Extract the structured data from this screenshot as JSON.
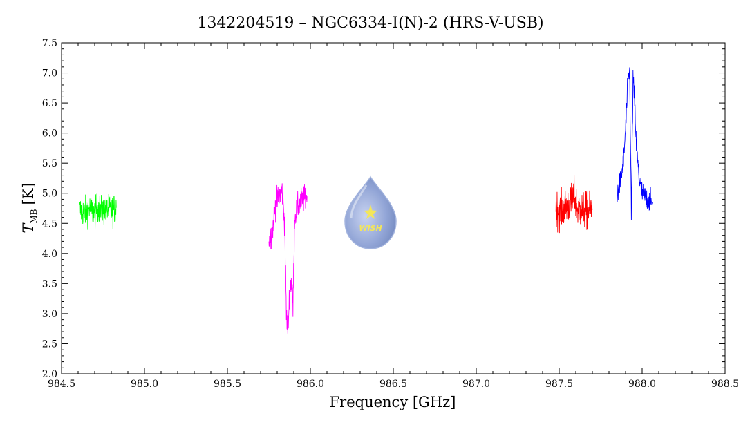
{
  "chart_data": {
    "type": "line",
    "title": "1342204519 – NGC6334-I(N)-2 (HRS-V-USB)",
    "xlabel": "Frequency [GHz]",
    "ylabel_main": "T",
    "ylabel_sub": "MB",
    "ylabel_unit": "[K]",
    "xlim": [
      984.5,
      988.5
    ],
    "ylim": [
      2.0,
      7.5
    ],
    "xticks": [
      "984.5",
      "985.0",
      "985.5",
      "986.0",
      "986.5",
      "987.0",
      "987.5",
      "988.0",
      "988.5"
    ],
    "yticks": [
      "2.0",
      "2.5",
      "3.0",
      "3.5",
      "4.0",
      "4.5",
      "5.0",
      "5.5",
      "6.0",
      "6.5",
      "7.0",
      "7.5"
    ],
    "grid": false,
    "series": [
      {
        "color": "#00ff00",
        "x": [
          984.61,
          984.64,
          984.67,
          984.7,
          984.72,
          984.74,
          984.77,
          984.8,
          984.83
        ],
        "y": [
          4.72,
          4.68,
          4.75,
          4.66,
          4.78,
          4.7,
          4.74,
          4.71,
          4.76
        ],
        "noise": 0.18
      },
      {
        "color": "#ff00ff",
        "x": [
          985.75,
          985.77,
          985.79,
          985.81,
          985.83,
          985.845,
          985.855,
          985.865,
          985.875,
          985.885,
          985.895,
          985.905,
          985.92,
          985.94,
          985.96,
          985.98
        ],
        "y": [
          4.25,
          4.35,
          4.8,
          4.95,
          5.05,
          4.5,
          3.0,
          2.7,
          3.4,
          3.55,
          3.1,
          4.6,
          4.75,
          4.85,
          4.9,
          4.95
        ],
        "noise": 0.16
      },
      {
        "color": "#ff0000",
        "x": [
          987.48,
          987.51,
          987.54,
          987.57,
          987.59,
          987.61,
          987.64,
          987.67,
          987.7
        ],
        "y": [
          4.75,
          4.7,
          4.78,
          4.82,
          4.95,
          4.74,
          4.72,
          4.7,
          4.73
        ],
        "noise": 0.22
      },
      {
        "color": "#0000ff",
        "x": [
          987.85,
          987.87,
          987.89,
          987.905,
          987.915,
          987.925,
          987.935,
          987.945,
          987.955,
          987.965,
          987.98,
          988.0,
          988.03,
          988.06
        ],
        "y": [
          5.0,
          5.2,
          5.6,
          6.3,
          6.9,
          7.0,
          4.6,
          6.9,
          6.5,
          5.8,
          5.3,
          5.0,
          4.9,
          4.85
        ],
        "noise": 0.14
      }
    ]
  },
  "logo": {
    "text": "WISH",
    "accent_color": "#f3e65a",
    "drop_color": "#8fa3d6"
  }
}
